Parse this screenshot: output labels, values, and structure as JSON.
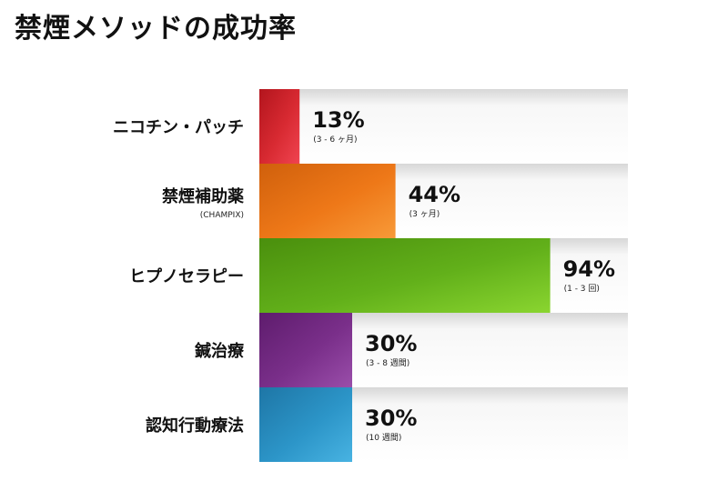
{
  "title": "禁煙メソッドの成功率",
  "chart_data": {
    "type": "bar",
    "orientation": "horizontal",
    "title": "禁煙メソッドの成功率",
    "xlabel": "",
    "ylabel": "",
    "xlim": [
      0,
      100
    ],
    "grid": false,
    "legend": "none",
    "items": [
      {
        "label": "ニコチン・パッチ",
        "sublabel": "",
        "value": 13,
        "value_text": "13%",
        "duration": "(3 - 6 ヶ月)",
        "color": "#d82a32",
        "color_light": "#f04450",
        "color_dark": "#b3151d"
      },
      {
        "label": "禁煙補助薬",
        "sublabel": "(CHAMPIX)",
        "value": 44,
        "value_text": "44%",
        "duration": "(3 ヶ月)",
        "color": "#ee7818",
        "color_light": "#f89a38",
        "color_dark": "#d0600c"
      },
      {
        "label": "ヒプノセラピー",
        "sublabel": "",
        "value": 94,
        "value_text": "94%",
        "duration": "(1 - 3 回)",
        "color": "#62b01a",
        "color_light": "#8ad530",
        "color_dark": "#4a8f0d"
      },
      {
        "label": "鍼治療",
        "sublabel": "",
        "value": 30,
        "value_text": "30%",
        "duration": "(3 - 8 週間)",
        "color": "#7a2f8a",
        "color_light": "#9a4eaa",
        "color_dark": "#5e1c6d"
      },
      {
        "label": "認知行動療法",
        "sublabel": "",
        "value": 30,
        "value_text": "30%",
        "duration": "(10 週間)",
        "color": "#2c95c8",
        "color_light": "#48b3e2",
        "color_dark": "#1e76a6"
      }
    ]
  }
}
